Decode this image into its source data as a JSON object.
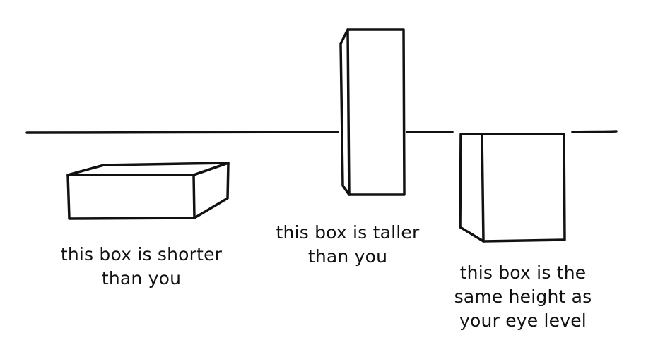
{
  "captions": {
    "short": [
      "this box is shorter",
      "than you"
    ],
    "tall": [
      "this box is taller",
      "than you"
    ],
    "eye_level": [
      "this box is the",
      "same height as",
      "your eye level"
    ]
  },
  "colors": {
    "ink": "#111111",
    "background": "#ffffff"
  }
}
